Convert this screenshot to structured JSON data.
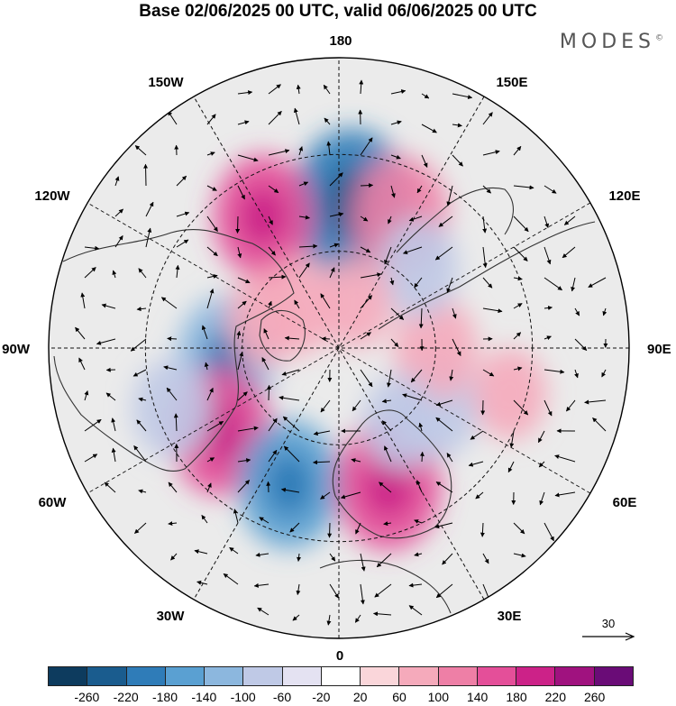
{
  "title": "Base 02/06/2025 00 UTC, valid 06/06/2025 00 UTC",
  "brand": "MODES",
  "brand_mark": "©",
  "longitude_labels": {
    "top": "180",
    "bottom": "0",
    "left": "90W",
    "right": "90E",
    "upper_left_1": "150W",
    "upper_left_2": "120W",
    "upper_right_1": "150E",
    "upper_right_2": "120E",
    "lower_left_1": "60W",
    "lower_left_2": "30W",
    "lower_right_1": "60E",
    "lower_right_2": "30E"
  },
  "reference_vector": {
    "value": "30"
  },
  "legend": {
    "colors": [
      "#0d3b5e",
      "#1a5c8e",
      "#2f7cb8",
      "#5aa0d2",
      "#8cb7de",
      "#bfc9e6",
      "#e4e2f2",
      "#ffffff",
      "#fad6da",
      "#f5aabb",
      "#ee7fa6",
      "#e44f99",
      "#cc2288",
      "#a0127f",
      "#6a0c77"
    ],
    "ticks": [
      "-260",
      "-220",
      "-180",
      "-140",
      "-100",
      "-60",
      "-20",
      "20",
      "60",
      "100",
      "140",
      "180",
      "220",
      "260"
    ]
  },
  "anomaly_blobs": [
    {
      "lon": 175,
      "lat": 45,
      "value": -200
    },
    {
      "lon": -150,
      "lat": 43,
      "value": 140
    },
    {
      "lon": 155,
      "lat": 45,
      "value": 130
    },
    {
      "lon": -85,
      "lat": 55,
      "value": -140
    },
    {
      "lon": -55,
      "lat": 45,
      "value": 150
    },
    {
      "lon": -20,
      "lat": 45,
      "value": -150
    },
    {
      "lon": 20,
      "lat": 45,
      "value": 160
    },
    {
      "lon": 60,
      "lat": 55,
      "value": -100
    },
    {
      "lon": 90,
      "lat": 60,
      "value": 90
    },
    {
      "lon": 135,
      "lat": 55,
      "value": -80
    },
    {
      "lon": 75,
      "lat": 35,
      "value": 60
    },
    {
      "lon": -110,
      "lat": 65,
      "value": 60
    },
    {
      "lon": -135,
      "lat": 72,
      "value": 70
    },
    {
      "lon": 160,
      "lat": 75,
      "value": 60
    },
    {
      "lon": 40,
      "lat": 60,
      "value": -70
    },
    {
      "lon": -70,
      "lat": 35,
      "value": -80
    }
  ]
}
